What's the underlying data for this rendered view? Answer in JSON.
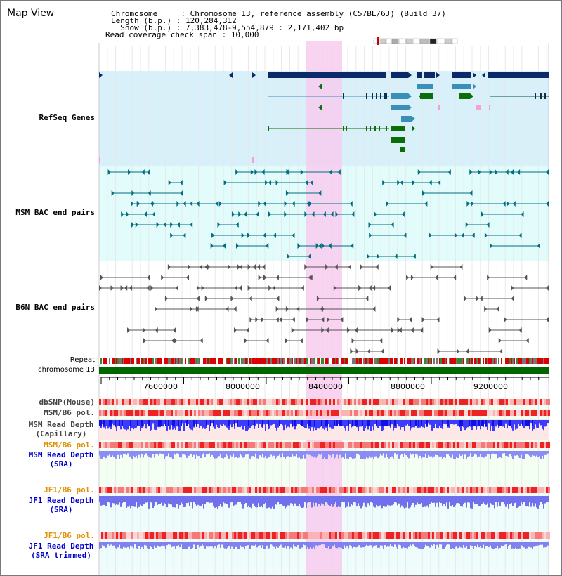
{
  "title": "Map View",
  "info": {
    "chromosome_line": "Chromosome     : Chromosome 13, reference assembly (C57BL/6J) (Build 37)",
    "length_line": "Length (b.p.) : 120,284,312",
    "show_line": "  Show (b.p.) : 7,383,478-9,554,879 : 2,171,402 bp",
    "coverage_line": "Read coverage check span : 10,000"
  },
  "tracks": {
    "refseq": "RefSeq Genes",
    "msm_bac": "MSM BAC end pairs",
    "b6n_bac": "B6N BAC end pairs",
    "repeat": "Repeat",
    "chromosome": "chromosome 13",
    "dbsnp": "dbSNP(Mouse)",
    "msm_b6_pol_1": "MSM/B6 pol.",
    "msm_read_depth_cap_1": "MSM Read Depth",
    "msm_read_depth_cap_2": "(Capillary)",
    "msm_b6_pol_2": "MSM/B6 pol.",
    "msm_read_depth_sra_1": "MSM Read Depth",
    "msm_read_depth_sra_2": "(SRA)",
    "jf1_b6_pol_1": "JF1/B6 pol.",
    "jf1_read_depth_sra_1": "JF1 Read Depth",
    "jf1_read_depth_sra_2": "(SRA)",
    "jf1_b6_pol_2": "JF1/B6 pol.",
    "jf1_read_depth_trim_1": "JF1 Read Depth",
    "jf1_read_depth_trim_2": "(SRA trimmed)"
  },
  "axis": {
    "ticks": [
      "7600000",
      "8000000",
      "8400000",
      "8800000",
      "9200000"
    ]
  },
  "colors": {
    "refseq_label": "#1a1aa0",
    "bac_label": "#006677",
    "b6n_label": "#333333",
    "orange_label": "#e09000",
    "blue_label": "#0000cc",
    "highlight": "#f7cdef",
    "refseq_bg": "#d8f0fa",
    "msm_bg": "#e2fbfb",
    "chromosome_bar": "#006600"
  }
}
